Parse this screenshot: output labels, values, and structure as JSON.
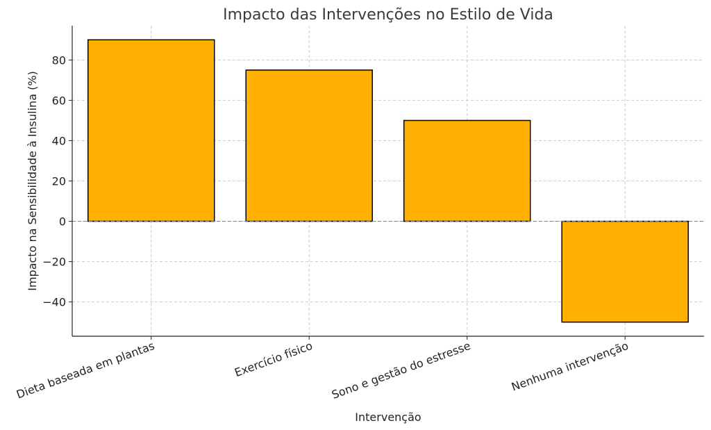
{
  "chart_data": {
    "type": "bar",
    "title": "Impacto das Intervenções no Estilo de Vida",
    "xlabel": "Intervenção",
    "ylabel": "Impacto na Sensibilidade à Insulina (%)",
    "categories": [
      "Dieta baseada em plantas",
      "Exercício físico",
      "Sono e gestão do estresse",
      "Nenhuma intervenção"
    ],
    "values": [
      90,
      75,
      50,
      -50
    ],
    "ylim": [
      -57,
      97
    ],
    "yticks": [
      -40,
      -20,
      0,
      20,
      40,
      60,
      80
    ],
    "ytick_labels": [
      "−40",
      "−20",
      "0",
      "20",
      "40",
      "60",
      "80"
    ],
    "grid": true,
    "zero_line": true,
    "colors": {
      "bar": "#FFB000",
      "bar_edge": "#000000"
    }
  }
}
